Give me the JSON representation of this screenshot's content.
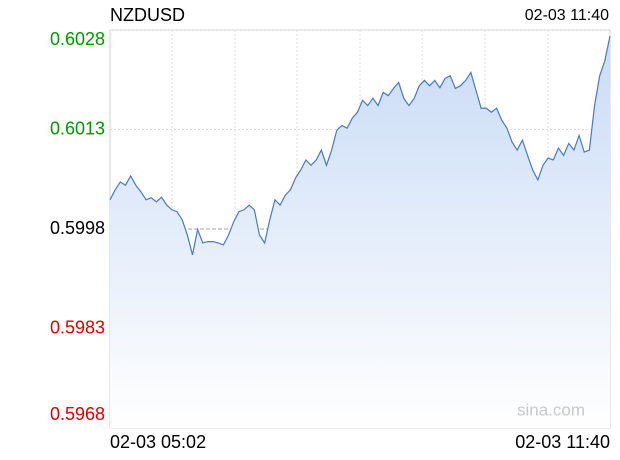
{
  "chart_data": {
    "type": "line",
    "title": "NZDUSD",
    "timestamp": "02-03 11:40",
    "watermark": "sina.com",
    "categories": [
      "02-03 05:02",
      null,
      null,
      null,
      null,
      null,
      null,
      null,
      null,
      null,
      null,
      null,
      null,
      null,
      null,
      null,
      null,
      null,
      null,
      null,
      null,
      null,
      null,
      null,
      null,
      null,
      null,
      null,
      null,
      null,
      null,
      null,
      null,
      null,
      null,
      null,
      null,
      null,
      null,
      null,
      null,
      null,
      null,
      null,
      null,
      null,
      null,
      null,
      null,
      null,
      null,
      null,
      null,
      null,
      null,
      null,
      null,
      null,
      null,
      null,
      null,
      null,
      null,
      null,
      null,
      null,
      null,
      null,
      null,
      null,
      null,
      null,
      null,
      null,
      null,
      null,
      null,
      null,
      null,
      null,
      null,
      null,
      null,
      null,
      null,
      null,
      null,
      null,
      null,
      null,
      null,
      null,
      null,
      null,
      null,
      null,
      null,
      "02-03 11:40"
    ],
    "series": [
      {
        "name": "NZDUSD",
        "color": "#4a78c8",
        "values": [
          0.60024,
          0.60039,
          0.60051,
          0.60046,
          0.6006,
          0.60046,
          0.60036,
          0.60024,
          0.60027,
          0.60021,
          0.60028,
          0.60016,
          0.60009,
          0.60006,
          0.59994,
          0.59971,
          0.59941,
          0.59979,
          0.59959,
          0.59961,
          0.59961,
          0.59959,
          0.59956,
          0.59971,
          0.59991,
          0.60006,
          0.60009,
          0.60016,
          0.60009,
          0.59971,
          0.59959,
          0.59994,
          0.60024,
          0.60016,
          0.60031,
          0.60039,
          0.60057,
          0.60069,
          0.60084,
          0.60076,
          0.60084,
          0.60099,
          0.60076,
          0.60099,
          0.60129,
          0.60136,
          0.60132,
          0.60147,
          0.60156,
          0.60174,
          0.60166,
          0.60177,
          0.60166,
          0.60186,
          0.60181,
          0.60192,
          0.60201,
          0.60177,
          0.60166,
          0.60177,
          0.60196,
          0.60204,
          0.60196,
          0.60204,
          0.60193,
          0.60207,
          0.60211,
          0.60192,
          0.60196,
          0.60204,
          0.60216,
          0.60189,
          0.60162,
          0.60162,
          0.60156,
          0.60162,
          0.60144,
          0.60132,
          0.60111,
          0.60099,
          0.60114,
          0.60091,
          0.60069,
          0.60054,
          0.60076,
          0.60087,
          0.60084,
          0.60102,
          0.60091,
          0.60109,
          0.60099,
          0.60121,
          0.60096,
          0.60099,
          0.60166,
          0.60211,
          0.60234,
          0.60271
        ]
      }
    ],
    "ylim": [
      0.5968,
      0.6028
    ],
    "yticks": [
      0.6028,
      0.6013,
      0.5998,
      0.5983,
      0.5968
    ],
    "reference_line": 0.5998,
    "up_color": "#009900",
    "down_color": "#e00000",
    "grid": true
  }
}
